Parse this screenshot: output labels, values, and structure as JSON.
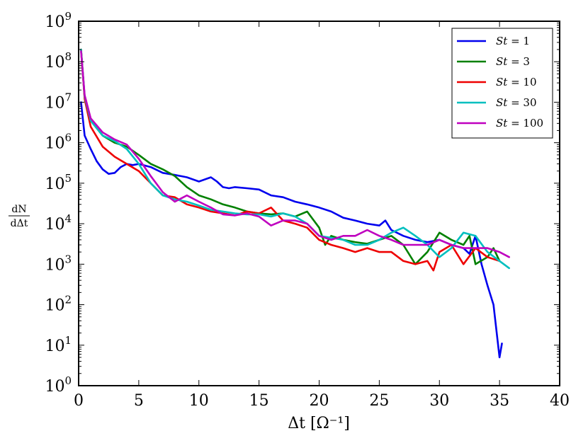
{
  "chart_data": {
    "type": "line",
    "xlabel": "Δt [Ω⁻¹]",
    "ylabel": "dN/dΔt",
    "ylabel_num": "dN",
    "ylabel_den": "dΔt",
    "xlim": [
      0,
      40
    ],
    "ylim": [
      1,
      1000000000
    ],
    "yscale": "log",
    "grid": false,
    "legend_position": "top-right",
    "x_ticks": [
      0,
      5,
      10,
      15,
      20,
      25,
      30,
      35,
      40
    ],
    "x_tick_labels": [
      "0",
      "5",
      "10",
      "15",
      "20",
      "25",
      "30",
      "35",
      "40"
    ],
    "y_tick_exponents": [
      0,
      1,
      2,
      3,
      4,
      5,
      6,
      7,
      8,
      9
    ],
    "series": [
      {
        "name": "St = 1",
        "legend_var": "St",
        "legend_val": "= 1",
        "color": "#0000ee",
        "x": [
          0.2,
          0.5,
          1.0,
          1.5,
          2.0,
          2.5,
          3.0,
          3.5,
          4.0,
          4.5,
          5.0,
          6.0,
          7.0,
          8.0,
          9.0,
          10.0,
          11.0,
          11.5,
          12.0,
          12.5,
          13.0,
          14.0,
          15.0,
          16.0,
          17.0,
          18.0,
          19.0,
          20.0,
          21.0,
          22.0,
          23.0,
          24.0,
          25.0,
          25.5,
          26.0,
          27.0,
          28.0,
          29.0,
          30.0,
          31.0,
          32.0,
          32.5,
          33.0,
          33.5,
          34.0,
          34.5,
          35.0,
          35.2
        ],
        "y": [
          10000000,
          1500000,
          700000,
          350000,
          220000,
          170000,
          180000,
          250000,
          300000,
          280000,
          300000,
          250000,
          180000,
          160000,
          140000,
          110000,
          140000,
          110000,
          80000,
          75000,
          80000,
          75000,
          70000,
          50000,
          45000,
          35000,
          30000,
          25000,
          20000,
          14000,
          12000,
          10000,
          9000,
          12000,
          7000,
          5000,
          4000,
          3500,
          4000,
          3000,
          2500,
          1800,
          5000,
          1000,
          300,
          100,
          5,
          11
        ]
      },
      {
        "name": "St = 3",
        "legend_var": "St",
        "legend_val": "= 3",
        "color": "#008000",
        "x": [
          0.2,
          0.5,
          1.0,
          2.0,
          3.0,
          4.0,
          5.0,
          6.0,
          7.0,
          8.0,
          9.0,
          10.0,
          11.0,
          12.0,
          13.0,
          14.0,
          15.0,
          16.0,
          17.0,
          18.0,
          19.0,
          20.0,
          20.5,
          21.0,
          22.0,
          23.0,
          24.0,
          25.0,
          26.0,
          27.0,
          28.0,
          29.0,
          30.0,
          31.0,
          32.0,
          32.5,
          33.0,
          34.0,
          34.5,
          35.0
        ],
        "y": [
          200000000,
          13000000,
          3500000,
          1500000,
          1000000,
          800000,
          500000,
          300000,
          220000,
          150000,
          80000,
          50000,
          40000,
          30000,
          25000,
          20000,
          18000,
          17000,
          18000,
          15000,
          20000,
          8000,
          3000,
          5000,
          4000,
          3500,
          3200,
          4000,
          5000,
          3000,
          1000,
          2000,
          6000,
          4000,
          3000,
          5000,
          1000,
          1500,
          2500,
          1200
        ]
      },
      {
        "name": "St = 10",
        "legend_var": "St",
        "legend_val": "= 10",
        "color": "#ee0000",
        "x": [
          0.2,
          0.5,
          1.0,
          2.0,
          3.0,
          4.0,
          5.0,
          6.0,
          7.0,
          8.0,
          9.0,
          10.0,
          11.0,
          12.0,
          13.0,
          14.0,
          15.0,
          16.0,
          17.0,
          18.0,
          19.0,
          20.0,
          21.0,
          22.0,
          23.0,
          24.0,
          25.0,
          26.0,
          27.0,
          28.0,
          29.0,
          29.5,
          30.0,
          31.0,
          32.0,
          33.0,
          34.0,
          35.0
        ],
        "y": [
          200000000,
          12000000,
          2500000,
          800000,
          450000,
          300000,
          200000,
          100000,
          50000,
          45000,
          30000,
          25000,
          20000,
          18000,
          16000,
          20000,
          18000,
          25000,
          12000,
          10000,
          8000,
          4000,
          3000,
          2500,
          2000,
          2500,
          2000,
          2000,
          1200,
          1000,
          1200,
          700,
          2000,
          3000,
          1000,
          2500,
          1500,
          1200
        ]
      },
      {
        "name": "St = 30",
        "legend_var": "St",
        "legend_val": "= 30",
        "color": "#00bfbf",
        "x": [
          0.2,
          0.5,
          1.0,
          2.0,
          3.0,
          4.0,
          5.0,
          6.0,
          7.0,
          8.0,
          9.0,
          10.0,
          11.0,
          12.0,
          13.0,
          14.0,
          15.0,
          16.0,
          17.0,
          18.0,
          19.0,
          20.0,
          21.0,
          22.0,
          23.0,
          24.0,
          25.0,
          26.0,
          27.0,
          28.0,
          29.0,
          30.0,
          31.0,
          32.0,
          33.0,
          34.0,
          35.0,
          35.8
        ],
        "y": [
          200000000,
          14000000,
          3500000,
          1500000,
          1100000,
          700000,
          300000,
          100000,
          50000,
          40000,
          35000,
          28000,
          22000,
          20000,
          18000,
          17000,
          17000,
          15000,
          18000,
          15000,
          10000,
          5000,
          4500,
          4000,
          3000,
          3000,
          4000,
          6000,
          8000,
          5000,
          3000,
          1500,
          2500,
          6000,
          5000,
          2000,
          1200,
          800
        ]
      },
      {
        "name": "St = 100",
        "legend_var": "St",
        "legend_val": "= 100",
        "color": "#bf00bf",
        "x": [
          0.2,
          0.5,
          1.0,
          2.0,
          3.0,
          4.0,
          5.0,
          6.0,
          7.0,
          8.0,
          9.0,
          10.0,
          11.0,
          12.0,
          13.0,
          14.0,
          15.0,
          16.0,
          17.0,
          18.0,
          19.0,
          20.0,
          21.0,
          22.0,
          23.0,
          24.0,
          25.0,
          26.0,
          27.0,
          28.0,
          29.0,
          30.0,
          31.0,
          32.0,
          33.0,
          34.0,
          35.0,
          35.8
        ],
        "y": [
          180000000,
          15000000,
          4000000,
          1800000,
          1200000,
          900000,
          400000,
          150000,
          60000,
          35000,
          50000,
          35000,
          25000,
          17000,
          16000,
          18000,
          15000,
          9000,
          12000,
          12000,
          10000,
          5000,
          4000,
          5000,
          5000,
          7000,
          5000,
          4000,
          3000,
          3000,
          3000,
          4000,
          3000,
          2500,
          2500,
          2500,
          2000,
          1500
        ]
      }
    ]
  }
}
